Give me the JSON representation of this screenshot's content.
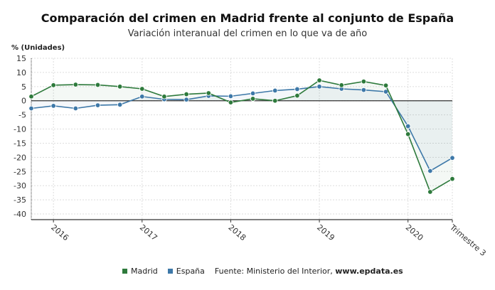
{
  "title": "Comparación del crimen en Madrid frente al conjunto de España",
  "subtitle": "Variación interanual del crimen en lo que va de año",
  "source_label": "Fuente: Ministerio del Interior, ",
  "source_site": "www.epdata.es",
  "chart_data": {
    "type": "line",
    "ylabel": "% (Unidades)",
    "ylim": [
      -42,
      15
    ],
    "yticks": [
      15,
      10,
      5,
      0,
      -5,
      -10,
      -15,
      -20,
      -25,
      -30,
      -35,
      -40
    ],
    "categories": [
      "",
      "2016",
      "",
      "",
      "",
      "2017",
      "",
      "",
      "",
      "2018",
      "",
      "",
      "",
      "2019",
      "",
      "",
      "",
      "2020",
      "",
      "Trimestre 3"
    ],
    "grid": true,
    "legend": "bottom",
    "series": [
      {
        "name": "Madrid",
        "color": "#2e7a3c",
        "values": [
          1.5,
          5.5,
          5.7,
          5.6,
          5.0,
          4.2,
          1.5,
          2.3,
          2.7,
          -0.6,
          0.7,
          0.0,
          1.8,
          7.2,
          5.5,
          6.8,
          5.4,
          -11.8,
          -32.2,
          -27.6
        ]
      },
      {
        "name": "España",
        "color": "#3d78a8",
        "values": [
          -2.7,
          -1.8,
          -2.7,
          -1.6,
          -1.4,
          1.5,
          0.5,
          0.4,
          1.7,
          1.6,
          2.6,
          3.6,
          4.1,
          5.0,
          4.2,
          3.8,
          3.2,
          -9.0,
          -24.8,
          -20.2
        ]
      }
    ]
  }
}
